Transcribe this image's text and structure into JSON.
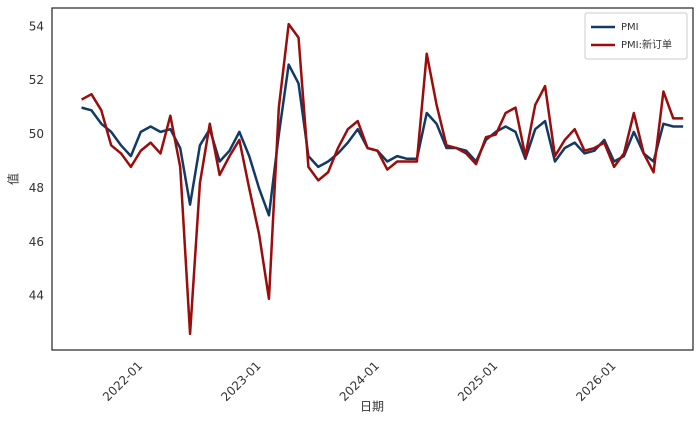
{
  "chart_data": {
    "type": "line",
    "x": [
      "2021-07",
      "2021-08",
      "2021-09",
      "2021-10",
      "2021-11",
      "2021-12",
      "2022-01",
      "2022-02",
      "2022-03",
      "2022-04",
      "2022-05",
      "2022-06",
      "2022-07",
      "2022-08",
      "2022-09",
      "2022-10",
      "2022-11",
      "2022-12",
      "2023-01",
      "2023-02",
      "2023-03",
      "2023-04",
      "2023-05",
      "2023-06",
      "2023-07",
      "2023-08",
      "2023-09",
      "2023-10",
      "2023-11",
      "2023-12",
      "2024-01",
      "2024-02",
      "2024-03",
      "2024-04",
      "2024-05",
      "2024-06",
      "2024-07",
      "2024-08",
      "2024-09",
      "2024-10",
      "2024-11",
      "2024-12",
      "2025-01",
      "2025-02",
      "2025-03",
      "2025-04",
      "2025-05",
      "2025-06",
      "2025-07",
      "2025-08",
      "2025-09",
      "2025-10",
      "2025-11",
      "2025-12",
      "2026-01",
      "2026-02",
      "2026-03",
      "2026-04",
      "2026-05",
      "2026-06",
      "2026-07",
      "2026-08"
    ],
    "series": [
      {
        "name": "PMI",
        "color": "#123a66",
        "values": [
          51.0,
          50.9,
          50.4,
          50.1,
          49.6,
          49.2,
          50.1,
          50.3,
          50.1,
          50.2,
          49.5,
          47.4,
          49.6,
          50.2,
          49.0,
          49.4,
          50.1,
          49.2,
          48.0,
          47.0,
          50.0,
          52.6,
          51.9,
          49.2,
          48.8,
          49.0,
          49.3,
          49.7,
          50.2,
          49.5,
          49.4,
          49.0,
          49.2,
          49.1,
          49.1,
          50.8,
          50.4,
          49.5,
          49.5,
          49.4,
          49.0,
          49.8,
          50.1,
          50.3,
          50.1,
          49.1,
          50.2,
          50.5,
          49.0,
          49.5,
          49.7,
          49.3,
          49.4,
          49.8,
          49.0,
          49.2,
          50.1,
          49.3,
          49.0,
          50.4,
          50.3,
          50.3
        ]
      },
      {
        "name": "PMI:新订单",
        "color": "#9b0c0c",
        "values": [
          51.3,
          51.5,
          50.9,
          49.6,
          49.3,
          48.8,
          49.4,
          49.7,
          49.3,
          50.7,
          48.8,
          42.6,
          48.2,
          50.4,
          48.5,
          49.2,
          49.8,
          48.0,
          46.3,
          43.9,
          51.0,
          54.1,
          53.6,
          48.8,
          48.3,
          48.6,
          49.5,
          50.2,
          50.5,
          49.5,
          49.4,
          48.7,
          49.0,
          49.0,
          49.0,
          53.0,
          51.1,
          49.6,
          49.5,
          49.3,
          48.9,
          49.9,
          50.0,
          50.8,
          51.0,
          49.2,
          51.1,
          51.8,
          49.2,
          49.8,
          50.2,
          49.4,
          49.5,
          49.7,
          48.8,
          49.3,
          50.8,
          49.3,
          48.6,
          51.6,
          50.6,
          50.6
        ]
      }
    ],
    "xlim": [
      "2021-04",
      "2026-09"
    ],
    "xticks": [
      "2022-01",
      "2023-01",
      "2024-01",
      "2025-01",
      "2026-01"
    ],
    "ylim": [
      42.0,
      54.7
    ],
    "yticks": [
      44,
      46,
      48,
      50,
      52,
      54
    ],
    "xlabel": "日期",
    "ylabel": "值",
    "legend": "upper right",
    "grid": false
  }
}
